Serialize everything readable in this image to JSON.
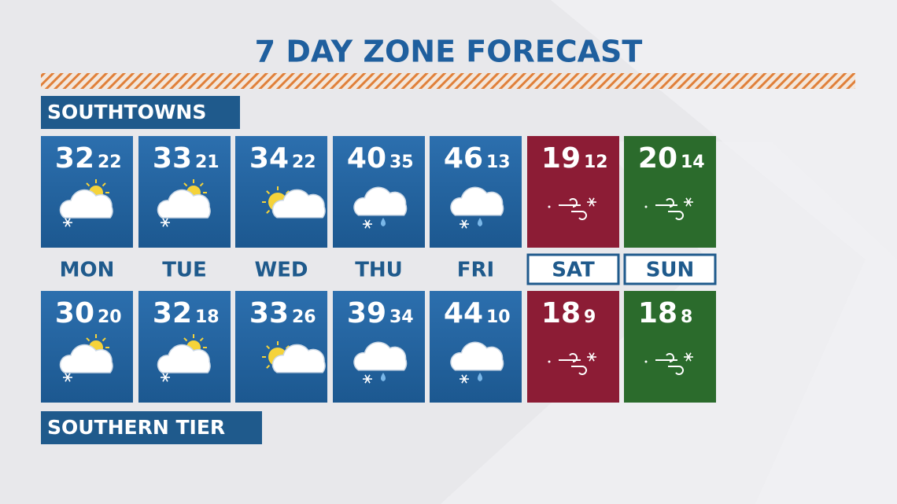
{
  "title": "7 DAY ZONE FORECAST",
  "days": [
    "MON",
    "TUE",
    "WED",
    "THU",
    "FRI",
    "SAT",
    "SUN"
  ],
  "zones": [
    {
      "name": "SOUTHTOWNS",
      "forecast": [
        {
          "high": 32,
          "low": 22
        },
        {
          "high": 33,
          "low": 21
        },
        {
          "high": 34,
          "low": 22
        },
        {
          "high": 40,
          "low": 35
        },
        {
          "high": 46,
          "low": 13
        },
        {
          "high": 19,
          "low": 12
        },
        {
          "high": 20,
          "low": 14
        }
      ]
    },
    {
      "name": "SOUTHERN TIER",
      "forecast": [
        {
          "high": 30,
          "low": 20
        },
        {
          "high": 32,
          "low": 18
        },
        {
          "high": 33,
          "low": 26
        },
        {
          "high": 39,
          "low": 34
        },
        {
          "high": 44,
          "low": 10
        },
        {
          "high": 18,
          "low": 9
        },
        {
          "high": 18,
          "low": 8
        }
      ]
    }
  ]
}
